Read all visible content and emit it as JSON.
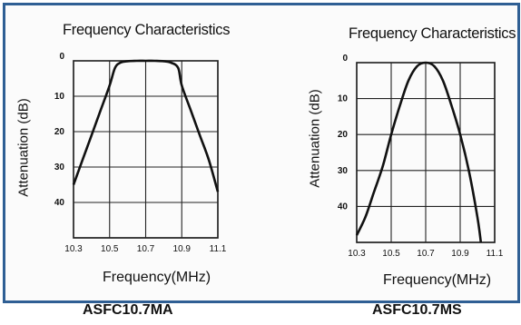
{
  "captions": {
    "left": "ASFC10.7MA",
    "right": "ASFC10.7MS"
  },
  "chart_data": [
    {
      "type": "line",
      "title": "Frequency Characteristics",
      "xlabel": "Frequency(MHz)",
      "ylabel": "Attenuation (dB)",
      "xlim": [
        10.3,
        11.1
      ],
      "ylim": [
        0,
        50
      ],
      "y_inverted": true,
      "grid": true,
      "xticks": [
        "10.3",
        "10.5",
        "10.7",
        "10.9",
        "11.1"
      ],
      "xtick_values": [
        10.3,
        10.5,
        10.7,
        10.9,
        11.1
      ],
      "yticks": [
        "0",
        "10",
        "20",
        "30",
        "40"
      ],
      "ytick_values": [
        0,
        10,
        20,
        30,
        40
      ],
      "series": [
        {
          "x": [
            10.3,
            10.35,
            10.4,
            10.45,
            10.5,
            10.53,
            10.56,
            10.6,
            10.65,
            10.7,
            10.75,
            10.8,
            10.84,
            10.88,
            10.9,
            10.95,
            11.0,
            11.05,
            11.1
          ],
          "y": [
            35,
            28,
            21,
            14,
            7,
            2,
            0.5,
            0.1,
            0,
            0,
            0,
            0.1,
            0.5,
            2,
            7,
            14,
            21,
            28,
            37
          ]
        }
      ]
    },
    {
      "type": "line",
      "title": "Frequency Characteristics",
      "xlabel": "Frequency(MHz)",
      "ylabel": "Attenuation (dB)",
      "xlim": [
        10.3,
        11.1
      ],
      "ylim": [
        0,
        50
      ],
      "y_inverted": true,
      "grid": true,
      "xticks": [
        "10.3",
        "10.5",
        "10.7",
        "10.9",
        "11.1"
      ],
      "xtick_values": [
        10.3,
        10.5,
        10.7,
        10.9,
        11.1
      ],
      "yticks": [
        "0",
        "10",
        "20",
        "30",
        "40"
      ],
      "ytick_values": [
        0,
        10,
        20,
        30,
        40
      ],
      "series": [
        {
          "x": [
            10.3,
            10.35,
            10.4,
            10.45,
            10.5,
            10.55,
            10.6,
            10.65,
            10.7,
            10.75,
            10.8,
            10.85,
            10.9,
            10.95,
            11.0,
            11.02
          ],
          "y": [
            48,
            43,
            36,
            29,
            20,
            12,
            5,
            1,
            0,
            1,
            5,
            12,
            20,
            30,
            43,
            50
          ]
        }
      ]
    }
  ]
}
